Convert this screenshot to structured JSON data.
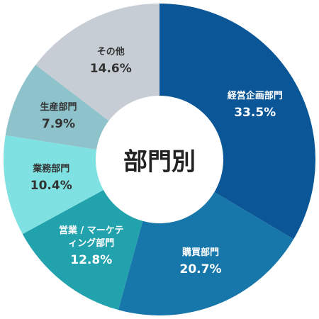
{
  "chart_data": {
    "type": "donut",
    "center_text": "部門別",
    "categories": [
      "経営企画部門",
      "購買部門",
      "営業 / マーケティング部門",
      "業務部門",
      "生産部門",
      "その他"
    ],
    "values": [
      33.5,
      20.7,
      12.8,
      10.4,
      7.9,
      14.6
    ],
    "value_labels": [
      "33.5%",
      "20.7%",
      "12.8%",
      "10.4%",
      "7.9%",
      "14.6%"
    ],
    "colors": [
      "#0a5696",
      "#1877aa",
      "#22a2ad",
      "#7fe1e1",
      "#8ec3cb",
      "#c6cdd4"
    ]
  }
}
